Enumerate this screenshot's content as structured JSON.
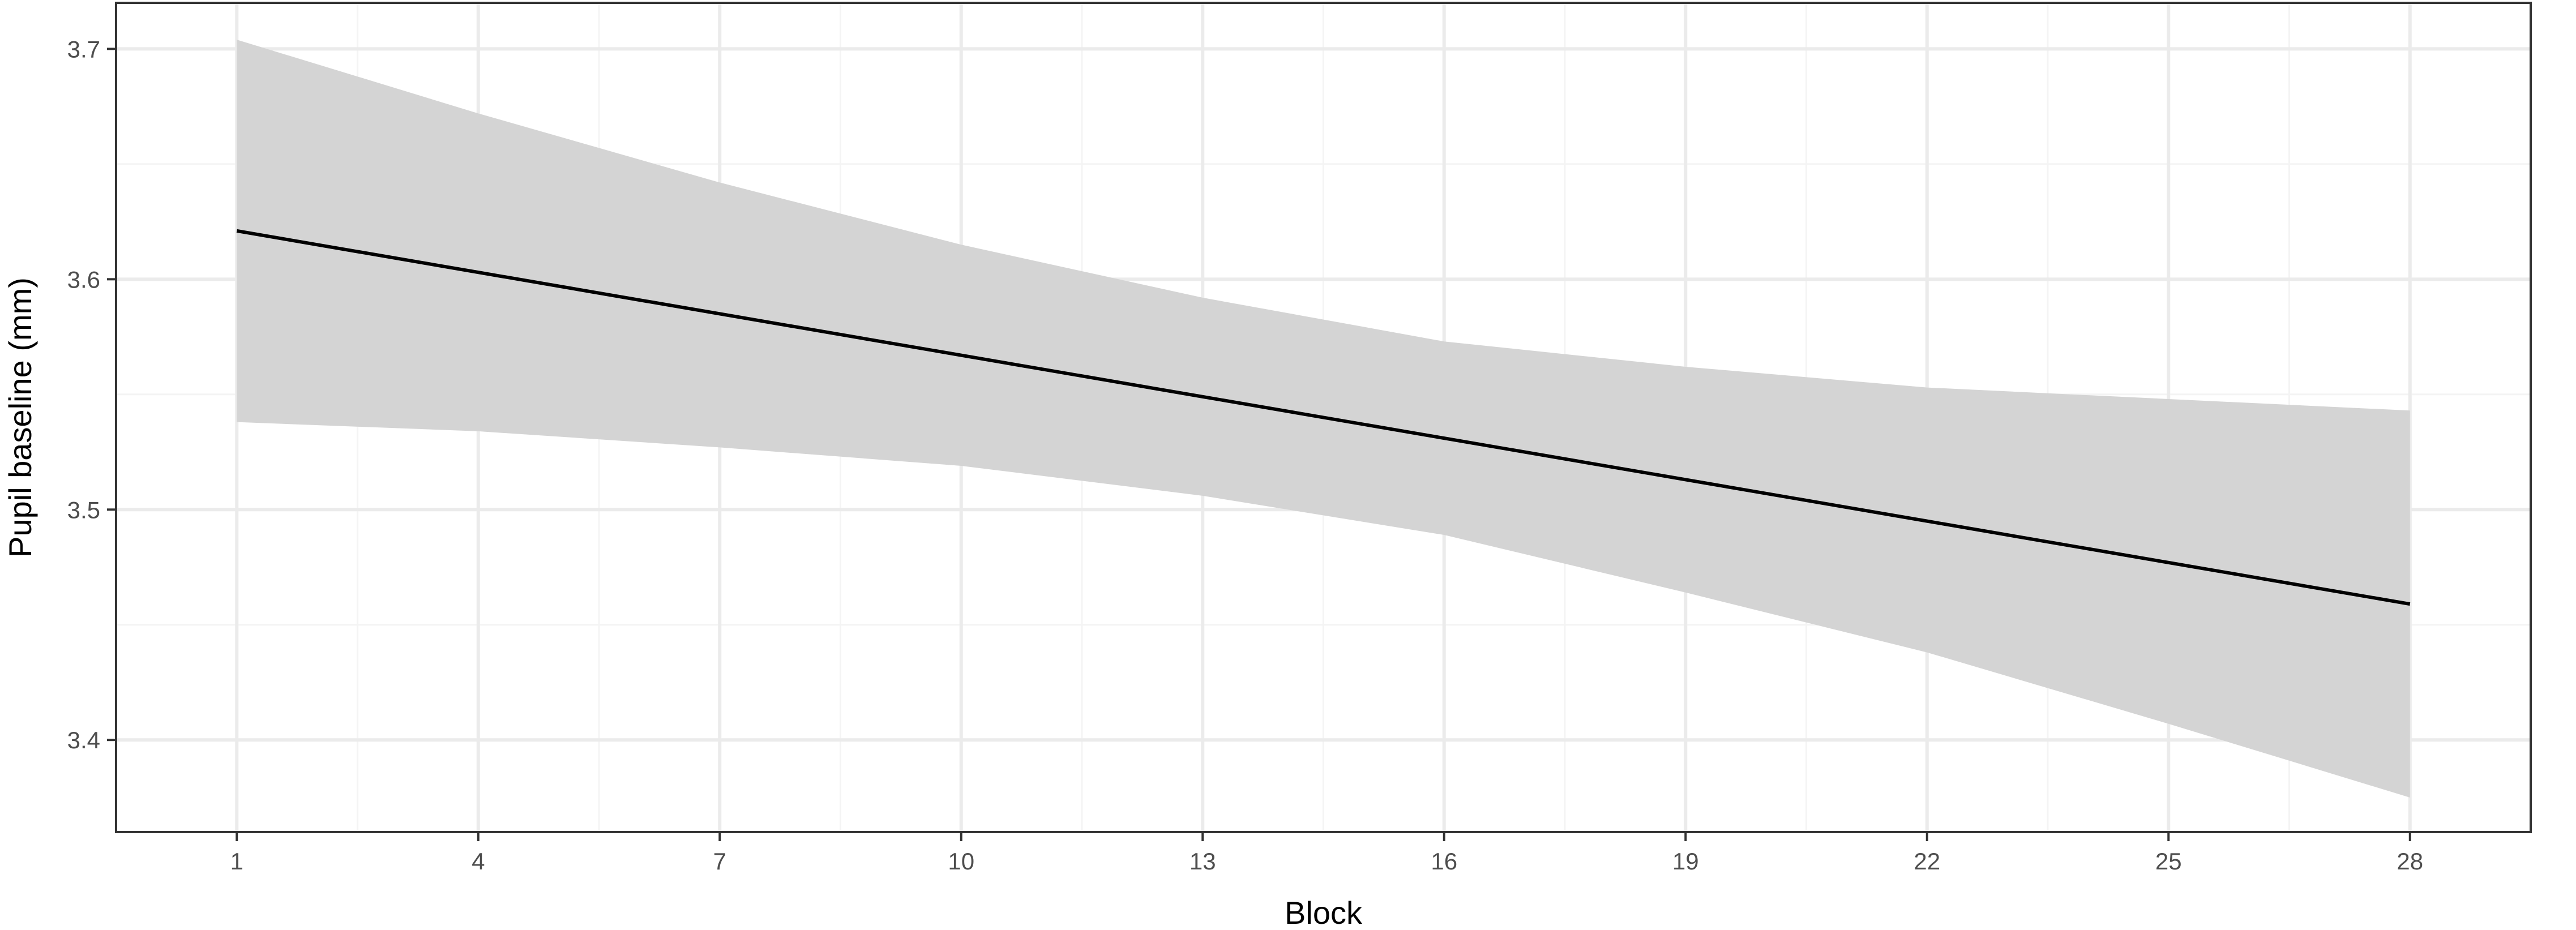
{
  "chart_data": {
    "type": "line",
    "title": "",
    "xlabel": "Block",
    "ylabel": "Pupil baseline (mm)",
    "xlim": [
      -0.5,
      29.5
    ],
    "ylim": [
      3.36,
      3.72
    ],
    "x_ticks": [
      1,
      4,
      7,
      10,
      13,
      16,
      19,
      22,
      25,
      28
    ],
    "y_ticks": [
      3.4,
      3.5,
      3.6,
      3.7
    ],
    "grid": true,
    "legend": "none",
    "series": [
      {
        "x": [
          1,
          4,
          7,
          10,
          13,
          16,
          19,
          22,
          25,
          28
        ],
        "values": [
          3.621,
          3.603,
          3.585,
          3.567,
          3.549,
          3.531,
          3.513,
          3.495,
          3.477,
          3.459
        ],
        "ci_lower": [
          3.538,
          3.534,
          3.527,
          3.519,
          3.506,
          3.489,
          3.464,
          3.438,
          3.407,
          3.375
        ],
        "ci_upper": [
          3.704,
          3.672,
          3.642,
          3.615,
          3.592,
          3.573,
          3.562,
          3.553,
          3.548,
          3.543
        ]
      }
    ],
    "colors": {
      "line": "#000000",
      "ribbon": "#d4d4d4",
      "grid_major": "#ebebeb",
      "grid_minor": "#f4f4f4",
      "panel_border": "#333333",
      "tick_label": "#4d4d4d"
    }
  }
}
